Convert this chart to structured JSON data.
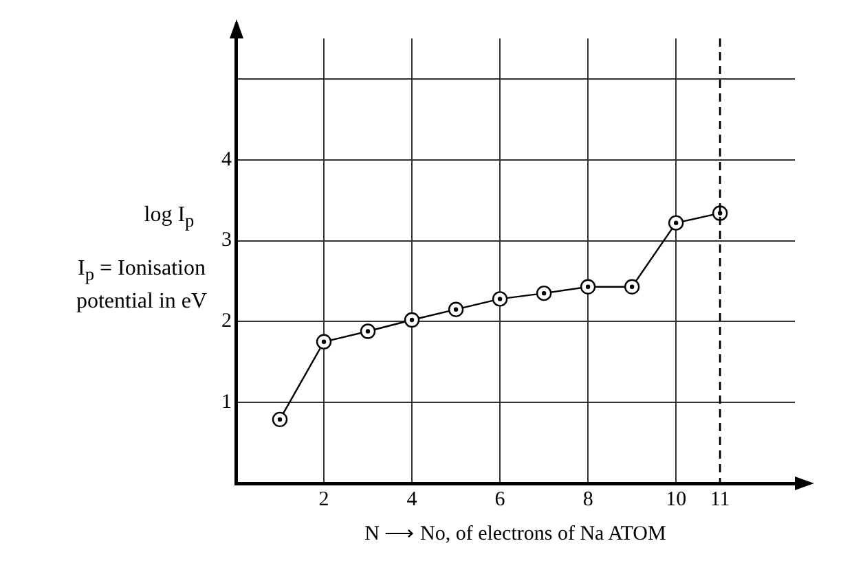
{
  "chart_data": {
    "type": "line",
    "xlabel": "N ⟶ No, of electrons of Na ATOM",
    "ylabel": "log I$_{p}$",
    "annotations": [
      "I$_{p}$ = Ionisation potential in eV"
    ],
    "x": [
      1,
      2,
      3,
      4,
      5,
      6,
      7,
      8,
      9,
      10,
      11
    ],
    "series": [
      {
        "color": "#000000",
        "values": [
          0.79,
          1.75,
          1.88,
          2.02,
          2.15,
          2.28,
          2.35,
          2.43,
          2.43,
          3.22,
          3.34
        ]
      }
    ],
    "xlim": [
      0,
      12.7
    ],
    "xticks": [
      2,
      4,
      6,
      8,
      10,
      11
    ],
    "ylim": [
      0,
      5.5
    ],
    "yticks": [
      1,
      2,
      3,
      4,
      {
        "value": 5,
        "label": null
      }
    ],
    "ref_lines": [
      {
        "axis": "x",
        "value": 11,
        "color": "#000000",
        "line_style": "dashed"
      }
    ],
    "grid": true,
    "marker": "circle",
    "line_style": "solid",
    "legend": false
  }
}
